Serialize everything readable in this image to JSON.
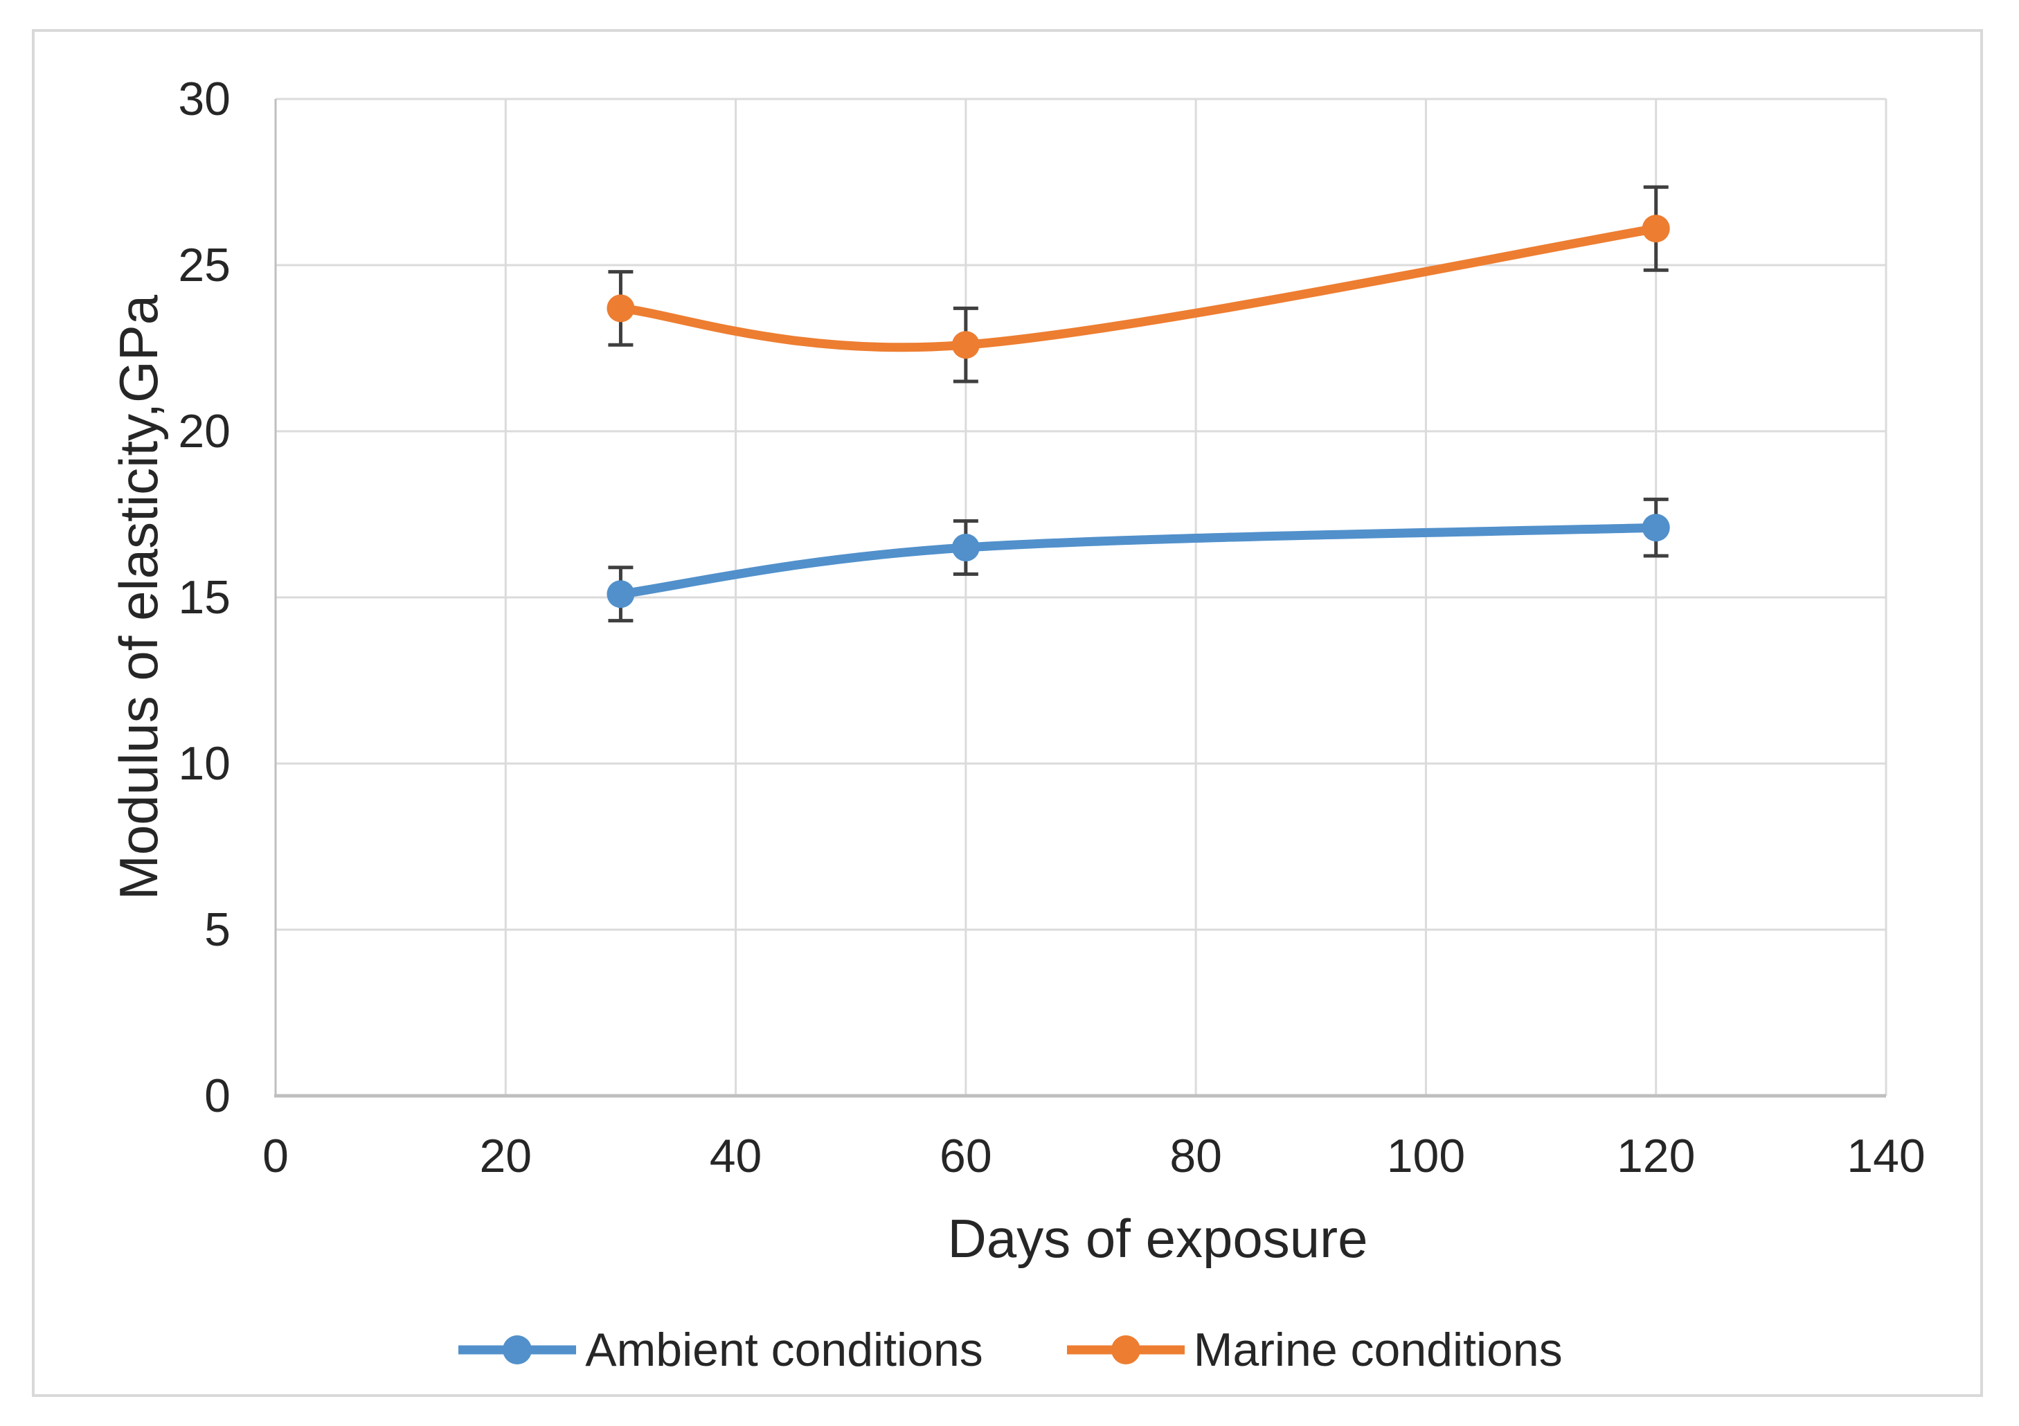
{
  "figure": {
    "background": "#FFFFFF",
    "border_color": "#D9D9D9"
  },
  "chart_data": {
    "type": "line",
    "title": "",
    "xlabel": "Days of exposure",
    "ylabel": "Modulus of elasticity,GPa",
    "xlim": [
      0,
      140
    ],
    "ylim": [
      0,
      30
    ],
    "x_ticks": [
      0,
      20,
      40,
      60,
      80,
      100,
      120,
      140
    ],
    "y_ticks": [
      0,
      5,
      10,
      15,
      20,
      25,
      30
    ],
    "grid": true,
    "smooth_lines": true,
    "marker": "circle",
    "legend_position": "bottom",
    "x": [
      30,
      60,
      120
    ],
    "series": [
      {
        "name": "Ambient conditions",
        "color": "#5190CB",
        "values": [
          15.1,
          16.5,
          17.1
        ],
        "error": [
          0.8,
          0.8,
          0.85
        ]
      },
      {
        "name": "Marine conditions",
        "color": "#ED7D31",
        "values": [
          23.7,
          22.6,
          26.1
        ],
        "error": [
          1.1,
          1.1,
          1.25
        ]
      }
    ],
    "error_bar_color": "#3F3F3F",
    "gridline_color": "#DBDBDB",
    "axis_line_color": "#BFBFBF",
    "text_color": "#262626"
  }
}
